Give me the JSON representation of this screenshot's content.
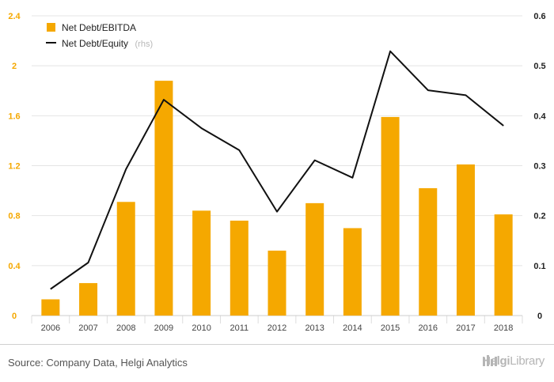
{
  "chart_data": {
    "type": "bar+line",
    "categories": [
      "2006",
      "2007",
      "2008",
      "2009",
      "2010",
      "2011",
      "2012",
      "2013",
      "2014",
      "2015",
      "2016",
      "2017",
      "2018"
    ],
    "series": [
      {
        "name": "Net Debt/EBITDA",
        "axis": "left",
        "kind": "bar",
        "color": "#f5a800",
        "values": [
          0.13,
          0.26,
          0.91,
          1.88,
          0.84,
          0.76,
          0.52,
          0.9,
          0.7,
          1.59,
          1.02,
          1.21,
          0.81
        ]
      },
      {
        "name": "Net Debt/Equity",
        "axis": "right",
        "kind": "line",
        "color": "#111111",
        "values": [
          0.053,
          0.106,
          0.293,
          0.432,
          0.375,
          0.331,
          0.208,
          0.311,
          0.276,
          0.529,
          0.451,
          0.441,
          0.38
        ]
      }
    ],
    "left_axis": {
      "min": 0,
      "max": 2.4,
      "ticks": [
        "0",
        "0.4",
        "0.8",
        "1.2",
        "1.6",
        "2",
        "2.4"
      ]
    },
    "right_axis": {
      "min": 0,
      "max": 0.6,
      "ticks": [
        "0",
        "0.1",
        "0.2",
        "0.3",
        "0.4",
        "0.5",
        "0.6"
      ]
    },
    "grid": true,
    "legend_placement": "top-left",
    "legend_rhs_note": "(rhs)"
  },
  "footer": {
    "source": "Source: Company Data, Helgi Analytics",
    "brand_main": "Helgi",
    "brand_sub": "Library"
  }
}
